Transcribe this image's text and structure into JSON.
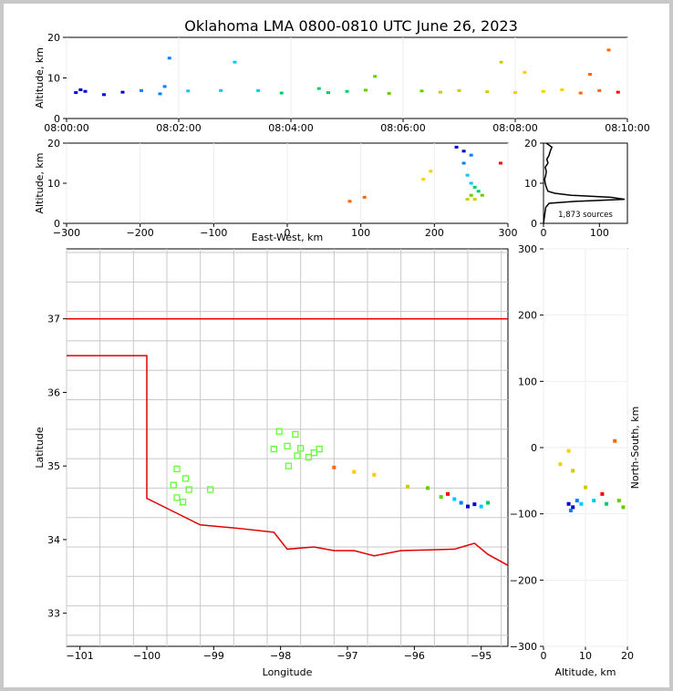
{
  "title": "Oklahoma LMA 0800-0810 UTC June 26, 2023",
  "colors": {
    "source_scale": [
      "#0000cc",
      "#0080ff",
      "#00c8ff",
      "#00cc66",
      "#66cc00",
      "#cccc00",
      "#ffcc00",
      "#ff6600",
      "#ff0000"
    ],
    "state_border": "#e00000",
    "county_lines": "#c8c8c8",
    "stations": "#66ff33"
  },
  "source_count_label": "1,873 sources",
  "chart_data": [
    {
      "id": "time_height",
      "type": "scatter",
      "xlabel": "",
      "ylabel": "Altitude, km",
      "x_ticks": [
        "08:00:00",
        "08:02:00",
        "08:04:00",
        "08:06:00",
        "08:08:00",
        "08:10:00"
      ],
      "y_ticks": [
        0,
        10,
        20
      ],
      "ylim": [
        0,
        20
      ],
      "grid": true,
      "points": [
        {
          "t": "08:00:10",
          "alt": 6.5
        },
        {
          "t": "08:00:15",
          "alt": 7.2
        },
        {
          "t": "08:00:20",
          "alt": 6.8
        },
        {
          "t": "08:00:40",
          "alt": 6.0
        },
        {
          "t": "08:01:00",
          "alt": 6.6
        },
        {
          "t": "08:01:20",
          "alt": 7.0
        },
        {
          "t": "08:01:40",
          "alt": 6.2
        },
        {
          "t": "08:01:45",
          "alt": 8.0
        },
        {
          "t": "08:01:50",
          "alt": 15.0
        },
        {
          "t": "08:02:10",
          "alt": 6.9
        },
        {
          "t": "08:02:45",
          "alt": 7.0
        },
        {
          "t": "08:03:00",
          "alt": 14.0
        },
        {
          "t": "08:03:25",
          "alt": 7.0
        },
        {
          "t": "08:03:50",
          "alt": 6.4
        },
        {
          "t": "08:04:30",
          "alt": 7.5
        },
        {
          "t": "08:04:40",
          "alt": 6.5
        },
        {
          "t": "08:05:00",
          "alt": 6.8
        },
        {
          "t": "08:05:20",
          "alt": 7.1
        },
        {
          "t": "08:05:30",
          "alt": 10.5
        },
        {
          "t": "08:05:45",
          "alt": 6.3
        },
        {
          "t": "08:06:20",
          "alt": 6.9
        },
        {
          "t": "08:06:40",
          "alt": 6.6
        },
        {
          "t": "08:07:00",
          "alt": 7.0
        },
        {
          "t": "08:07:30",
          "alt": 6.7
        },
        {
          "t": "08:07:45",
          "alt": 14.0
        },
        {
          "t": "08:08:00",
          "alt": 6.5
        },
        {
          "t": "08:08:10",
          "alt": 11.5
        },
        {
          "t": "08:08:30",
          "alt": 6.8
        },
        {
          "t": "08:08:50",
          "alt": 7.2
        },
        {
          "t": "08:09:10",
          "alt": 6.4
        },
        {
          "t": "08:09:20",
          "alt": 11.0
        },
        {
          "t": "08:09:30",
          "alt": 7.0
        },
        {
          "t": "08:09:40",
          "alt": 17.0
        },
        {
          "t": "08:09:50",
          "alt": 6.6
        }
      ]
    },
    {
      "id": "east_west_altitude",
      "type": "scatter",
      "xlabel": "East-West, km",
      "ylabel": "Altitude, km",
      "xlim": [
        -300,
        300
      ],
      "ylim": [
        0,
        20
      ],
      "x_ticks": [
        "−300",
        "−200",
        "−100",
        "0",
        "100",
        "200",
        "300"
      ],
      "y_ticks": [
        0,
        10,
        20
      ],
      "grid": true,
      "points": [
        {
          "x": 230,
          "alt": 19
        },
        {
          "x": 240,
          "alt": 18
        },
        {
          "x": 250,
          "alt": 17
        },
        {
          "x": 240,
          "alt": 15
        },
        {
          "x": 245,
          "alt": 12
        },
        {
          "x": 250,
          "alt": 10
        },
        {
          "x": 255,
          "alt": 9
        },
        {
          "x": 260,
          "alt": 8
        },
        {
          "x": 250,
          "alt": 7
        },
        {
          "x": 265,
          "alt": 7
        },
        {
          "x": 245,
          "alt": 6
        },
        {
          "x": 255,
          "alt": 6
        },
        {
          "x": 195,
          "alt": 13
        },
        {
          "x": 185,
          "alt": 11
        },
        {
          "x": 85,
          "alt": 5.5
        },
        {
          "x": 105,
          "alt": 6.5
        },
        {
          "x": 290,
          "alt": 15
        }
      ]
    },
    {
      "id": "altitude_histogram",
      "type": "line",
      "xlim": [
        0,
        150
      ],
      "ylim": [
        0,
        20
      ],
      "x_ticks": [
        0,
        100
      ],
      "y_ticks": [
        0,
        10,
        20
      ],
      "alt": [
        0,
        2,
        4,
        5,
        5.5,
        6,
        6.5,
        7,
        7.5,
        8,
        9,
        10,
        11,
        12,
        13,
        14,
        15,
        16,
        17,
        18,
        19,
        20
      ],
      "count": [
        0,
        2,
        4,
        10,
        60,
        145,
        120,
        50,
        20,
        8,
        5,
        3,
        2,
        4,
        5,
        3,
        8,
        6,
        10,
        12,
        15,
        5
      ]
    },
    {
      "id": "plan_view",
      "type": "scatter",
      "xlabel": "Longitude",
      "ylabel": "Latitude",
      "xlim": [
        -101.2,
        -94.6
      ],
      "ylim": [
        32.55,
        37.95
      ],
      "x_ticks": [
        "−101",
        "−100",
        "−99",
        "−98",
        "−97",
        "−96",
        "−95"
      ],
      "y_ticks": [
        "33",
        "34",
        "35",
        "36",
        "37"
      ],
      "stations": [
        {
          "lon": -99.55,
          "lat": 34.96
        },
        {
          "lon": -99.42,
          "lat": 34.83
        },
        {
          "lon": -99.6,
          "lat": 34.74
        },
        {
          "lon": -99.37,
          "lat": 34.68
        },
        {
          "lon": -99.05,
          "lat": 34.68
        },
        {
          "lon": -99.55,
          "lat": 34.57
        },
        {
          "lon": -99.46,
          "lat": 34.51
        },
        {
          "lon": -98.02,
          "lat": 35.47
        },
        {
          "lon": -97.78,
          "lat": 35.43
        },
        {
          "lon": -98.1,
          "lat": 35.23
        },
        {
          "lon": -97.9,
          "lat": 35.27
        },
        {
          "lon": -97.7,
          "lat": 35.24
        },
        {
          "lon": -97.42,
          "lat": 35.23
        },
        {
          "lon": -97.5,
          "lat": 35.18
        },
        {
          "lon": -97.58,
          "lat": 35.12
        },
        {
          "lon": -97.75,
          "lat": 35.14
        },
        {
          "lon": -97.88,
          "lat": 35.0
        }
      ],
      "sources": [
        {
          "lon": -95.2,
          "lat": 34.45
        },
        {
          "lon": -95.1,
          "lat": 34.48
        },
        {
          "lon": -95.3,
          "lat": 34.5
        },
        {
          "lon": -95.0,
          "lat": 34.45
        },
        {
          "lon": -95.4,
          "lat": 34.55
        },
        {
          "lon": -94.9,
          "lat": 34.5
        },
        {
          "lon": -95.6,
          "lat": 34.58
        },
        {
          "lon": -95.8,
          "lat": 34.7
        },
        {
          "lon": -96.1,
          "lat": 34.72
        },
        {
          "lon": -96.6,
          "lat": 34.88
        },
        {
          "lon": -96.9,
          "lat": 34.92
        },
        {
          "lon": -97.2,
          "lat": 34.98
        },
        {
          "lon": -95.5,
          "lat": 34.62
        }
      ]
    },
    {
      "id": "altitude_north_south",
      "type": "scatter",
      "xlabel": "Altitude, km",
      "ylabel": "North-South, km",
      "xlim": [
        0,
        20
      ],
      "ylim": [
        -300,
        300
      ],
      "x_ticks": [
        0,
        10,
        20
      ],
      "y_ticks": [
        "−300",
        "−200",
        "−100",
        "0",
        "100",
        "200",
        "300"
      ],
      "points": [
        {
          "alt": 6,
          "ns": -85
        },
        {
          "alt": 7,
          "ns": -90
        },
        {
          "alt": 8,
          "ns": -80
        },
        {
          "alt": 6.5,
          "ns": -95
        },
        {
          "alt": 9,
          "ns": -85
        },
        {
          "alt": 12,
          "ns": -80
        },
        {
          "alt": 15,
          "ns": -85
        },
        {
          "alt": 18,
          "ns": -80
        },
        {
          "alt": 19,
          "ns": -90
        },
        {
          "alt": 10,
          "ns": -60
        },
        {
          "alt": 7,
          "ns": -35
        },
        {
          "alt": 4,
          "ns": -25
        },
        {
          "alt": 6,
          "ns": -5
        },
        {
          "alt": 17,
          "ns": 10
        },
        {
          "alt": 14,
          "ns": -70
        }
      ]
    }
  ]
}
